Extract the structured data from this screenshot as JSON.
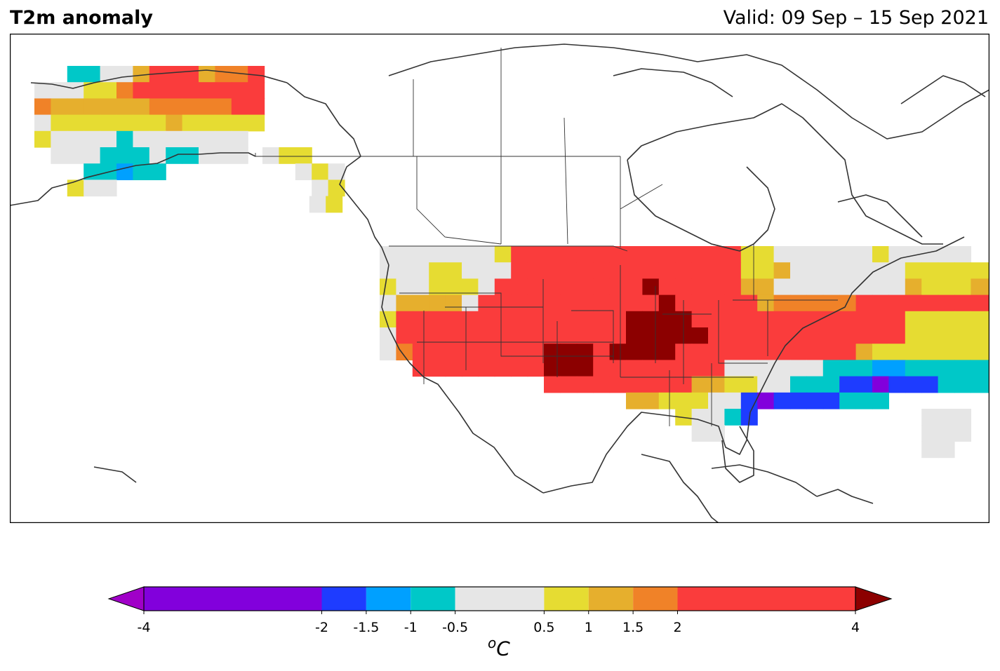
{
  "header": {
    "title": "T2m anomaly",
    "valid": "Valid: 09 Sep – 15 Sep 2021"
  },
  "colorbar": {
    "unit_sup": "o",
    "unit": "C",
    "ticks": [
      {
        "value": -4,
        "label": "-4"
      },
      {
        "value": -2,
        "label": "-2"
      },
      {
        "value": -1.5,
        "label": "-1.5"
      },
      {
        "value": -1,
        "label": "-1"
      },
      {
        "value": -0.5,
        "label": "-0.5"
      },
      {
        "value": 0.5,
        "label": "0.5"
      },
      {
        "value": 1,
        "label": "1"
      },
      {
        "value": 1.5,
        "label": "1.5"
      },
      {
        "value": 2,
        "label": "2"
      },
      {
        "value": 4,
        "label": "4"
      }
    ],
    "bins": [
      {
        "from": -4,
        "to": -2,
        "color": "#8200dc"
      },
      {
        "from": -2,
        "to": -1.5,
        "color": "#1e3cff"
      },
      {
        "from": -1.5,
        "to": -1,
        "color": "#00a0ff"
      },
      {
        "from": -1,
        "to": -0.5,
        "color": "#00c8c8"
      },
      {
        "from": -0.5,
        "to": 0.5,
        "color": "#e6e6e6"
      },
      {
        "from": 0.5,
        "to": 1,
        "color": "#e6dc32"
      },
      {
        "from": 1,
        "to": 1.5,
        "color": "#e6af2d"
      },
      {
        "from": 1.5,
        "to": 2,
        "color": "#f08228"
      },
      {
        "from": 2,
        "to": 4,
        "color": "#fa3c3c"
      }
    ],
    "under_color": "#a000c8",
    "over_color": "#8c0000"
  }
}
